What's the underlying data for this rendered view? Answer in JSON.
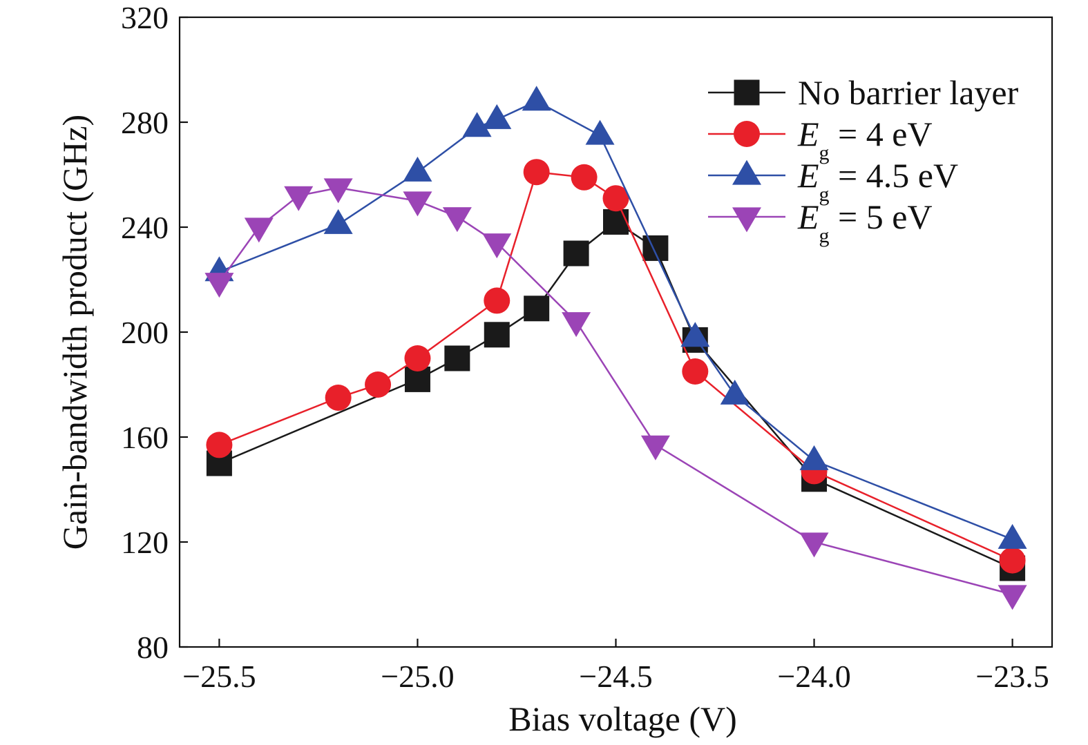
{
  "chart_data": {
    "type": "line",
    "title": "",
    "xlabel": "Bias voltage (V)",
    "ylabel": "Gain-bandwidth product (GHz)",
    "xlim": [
      -25.6,
      -23.4
    ],
    "ylim": [
      80,
      320
    ],
    "xticks": [
      -25.5,
      -25.0,
      -24.5,
      -24.0,
      -23.5
    ],
    "xtick_labels": [
      "−25.5",
      "−25.0",
      "−24.5",
      "−24.0",
      "−23.5"
    ],
    "yticks": [
      80,
      120,
      160,
      200,
      240,
      280,
      320
    ],
    "ytick_labels": [
      "80",
      "120",
      "160",
      "200",
      "240",
      "280",
      "320"
    ],
    "grid": false,
    "legend_position": "top-right",
    "series": [
      {
        "name": "No barrier layer",
        "legend": {
          "main": "No barrier layer",
          "italic": "",
          "sub": "",
          "rest": ""
        },
        "color": "#1a1a1a",
        "marker": "square",
        "x": [
          -25.5,
          -25.0,
          -24.9,
          -24.8,
          -24.7,
          -24.6,
          -24.5,
          -24.4,
          -24.3,
          -24.0,
          -23.5
        ],
        "y": [
          150,
          182,
          190,
          199,
          209,
          230,
          242,
          232,
          197,
          144,
          110
        ]
      },
      {
        "name": "Eg = 4 eV",
        "legend": {
          "main": "",
          "italic": "E",
          "sub": "g",
          "rest": " = 4 eV"
        },
        "color": "#e8202a",
        "marker": "circle",
        "x": [
          -25.5,
          -25.2,
          -25.1,
          -25.0,
          -24.8,
          -24.7,
          -24.58,
          -24.5,
          -24.3,
          -24.0,
          -23.5
        ],
        "y": [
          157,
          175,
          180,
          190,
          212,
          261,
          259,
          251,
          185,
          147,
          113
        ]
      },
      {
        "name": "Eg = 4.5 eV",
        "legend": {
          "main": "",
          "italic": "E",
          "sub": "g",
          "rest": " = 4.5 eV"
        },
        "color": "#2e4fa6",
        "marker": "triangle-up",
        "x": [
          -25.5,
          -25.2,
          -25.0,
          -24.85,
          -24.8,
          -24.7,
          -24.54,
          -24.3,
          -24.2,
          -24.0,
          -23.5
        ],
        "y": [
          223,
          241,
          261,
          278,
          281,
          288,
          275,
          198,
          176,
          151,
          121
        ]
      },
      {
        "name": "Eg = 5 eV",
        "legend": {
          "main": "",
          "italic": "E",
          "sub": "g",
          "rest": " = 5 eV"
        },
        "color": "#9b44b6",
        "marker": "triangle-down",
        "x": [
          -25.5,
          -25.4,
          -25.3,
          -25.2,
          -25.0,
          -24.9,
          -24.8,
          -24.6,
          -24.4,
          -24.0,
          -23.5
        ],
        "y": [
          219,
          240,
          252,
          255,
          250,
          244,
          234,
          204,
          157,
          120,
          100
        ]
      }
    ]
  }
}
